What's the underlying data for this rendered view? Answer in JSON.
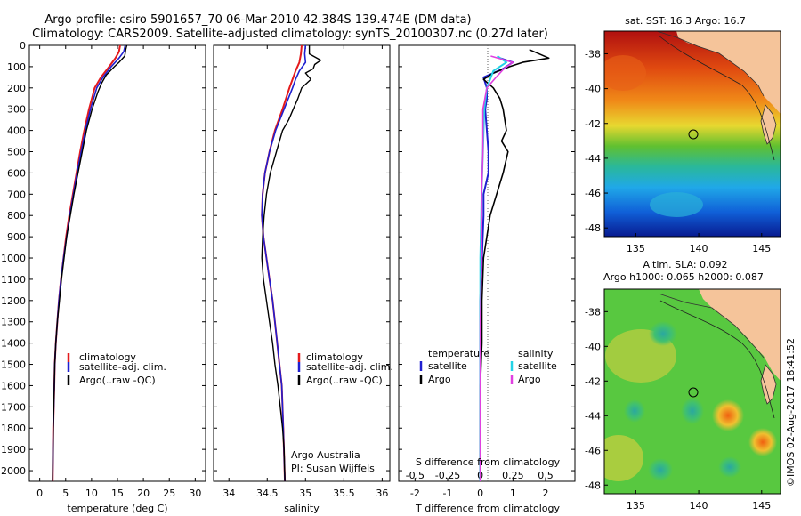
{
  "titles": {
    "line1": "Argo profile: csiro 5901657_70 06-Mar-2010 42.384S 139.474E (DM data)",
    "line2": "Climatology: CARS2009. Satellite-adjusted climatology: synTS_20100307.nc (0.27d later)"
  },
  "colors": {
    "climatology": "#e41a1c",
    "satellite": "#1f1fd0",
    "argo": "#000000",
    "salinity_satellite": "#22d3e6",
    "salinity_argo": "#e040e0",
    "land": "#f5c49a"
  },
  "depth_ticks": [
    "0",
    "100",
    "200",
    "300",
    "400",
    "500",
    "600",
    "700",
    "800",
    "900",
    "1000",
    "1100",
    "1200",
    "1300",
    "1400",
    "1500",
    "1600",
    "1700",
    "1800",
    "1900",
    "2000"
  ],
  "panels": {
    "temperature": {
      "xlabel": "temperature (deg C)",
      "xticks": [
        "0",
        "5",
        "10",
        "15",
        "20",
        "25",
        "30"
      ],
      "legend": [
        "climatology",
        "satellite-adj. clim.",
        "Argo(..raw -QC)"
      ]
    },
    "salinity": {
      "xlabel": "salinity",
      "xticks": [
        "34",
        "34.5",
        "35",
        "35.5",
        "36"
      ],
      "legend": [
        "climatology",
        "satellite-adj. clim.",
        "Argo(..raw -QC)"
      ],
      "annot1": "Argo Australia",
      "annot2": "PI: Susan Wijffels"
    },
    "difference": {
      "xlabel": "T difference from climatology",
      "top_label": "S difference from climatology",
      "xticks_T": [
        "-2",
        "-1",
        "0",
        "1",
        "2"
      ],
      "xticks_S": [
        "-0.5",
        "-0.25",
        "0",
        "0.25",
        "0.5"
      ],
      "legend_t_head": "temperature",
      "legend_s_head": "salinity",
      "legend_t": [
        "satellite",
        "Argo"
      ],
      "legend_s": [
        "satellite",
        "Argo"
      ]
    }
  },
  "maps": {
    "sst": {
      "title": "sat. SST: 16.3 Argo: 16.7",
      "yticks": [
        "-38",
        "-40",
        "-42",
        "-44",
        "-46",
        "-48"
      ],
      "xticks": [
        "135",
        "140",
        "145"
      ]
    },
    "sla": {
      "title1": "Altim. SLA: 0.092",
      "title2": "Argo h1000: 0.065 h2000: 0.087",
      "yticks": [
        "-38",
        "-40",
        "-42",
        "-44",
        "-46",
        "-48"
      ],
      "xticks": [
        "135",
        "140",
        "145"
      ]
    },
    "credit": "©IMOS 02-Aug-2017 18:41:52"
  },
  "chart_data": [
    {
      "type": "line",
      "title": "",
      "xlabel": "temperature (deg C)",
      "ylabel": "",
      "xlim": [
        -2,
        32
      ],
      "ylim": [
        2050,
        0
      ],
      "series": [
        {
          "name": "climatology",
          "x": [
            15.5,
            15.3,
            14.6,
            13.4,
            11.8,
            10.6,
            9.5,
            8.6,
            7.8,
            7.1,
            6.4,
            5.7,
            5.1,
            4.6,
            4.1,
            3.7,
            3.4,
            3.1,
            2.9,
            2.8,
            2.6,
            2.5
          ],
          "y": [
            0,
            30,
            60,
            100,
            150,
            200,
            300,
            400,
            500,
            600,
            700,
            800,
            900,
            1000,
            1100,
            1200,
            1300,
            1400,
            1500,
            1600,
            1800,
            2050
          ]
        },
        {
          "name": "satellite-adj. clim.",
          "x": [
            16.5,
            16.2,
            15.3,
            13.8,
            12.2,
            11.0,
            9.8,
            8.8,
            8.0,
            7.2,
            6.5,
            5.8,
            5.2,
            4.6,
            4.1,
            3.7,
            3.4,
            3.1,
            2.9,
            2.8,
            2.6,
            2.5
          ],
          "y": [
            0,
            30,
            60,
            100,
            150,
            200,
            300,
            400,
            500,
            600,
            700,
            800,
            900,
            1000,
            1100,
            1200,
            1300,
            1400,
            1500,
            1600,
            1800,
            2050
          ]
        },
        {
          "name": "Argo(..raw -QC)",
          "x": [
            16.8,
            16.6,
            16.4,
            15.3,
            14.4,
            12.8,
            11.9,
            11.2,
            10.1,
            9.0,
            8.2,
            7.4,
            6.6,
            5.9,
            5.2,
            4.7,
            4.2,
            3.8,
            3.4,
            3.1,
            2.9,
            2.8,
            2.6,
            2.5
          ],
          "y": [
            0,
            20,
            50,
            80,
            100,
            140,
            180,
            220,
            300,
            400,
            500,
            600,
            700,
            800,
            900,
            1000,
            1100,
            1200,
            1300,
            1400,
            1500,
            1600,
            1800,
            2050
          ]
        }
      ]
    },
    {
      "type": "line",
      "title": "",
      "xlabel": "salinity",
      "ylabel": "",
      "xlim": [
        33.8,
        36.1
      ],
      "ylim": [
        2050,
        0
      ],
      "series": [
        {
          "name": "climatology",
          "x": [
            34.95,
            34.94,
            34.92,
            34.87,
            34.83,
            34.79,
            34.7,
            34.6,
            34.53,
            34.47,
            34.44,
            34.43,
            34.45,
            34.49,
            34.53,
            34.57,
            34.6,
            34.63,
            34.66,
            34.69,
            34.71,
            34.73
          ],
          "y": [
            0,
            40,
            80,
            120,
            160,
            200,
            300,
            400,
            500,
            600,
            700,
            800,
            900,
            1000,
            1100,
            1200,
            1300,
            1400,
            1500,
            1600,
            1800,
            2050
          ]
        },
        {
          "name": "satellite-adj. clim.",
          "x": [
            35.0,
            34.99,
            35.0,
            34.92,
            34.87,
            34.83,
            34.72,
            34.61,
            34.53,
            34.47,
            34.44,
            34.43,
            34.45,
            34.49,
            34.53,
            34.57,
            34.6,
            34.63,
            34.66,
            34.69,
            34.71,
            34.73
          ],
          "y": [
            0,
            40,
            80,
            120,
            160,
            200,
            300,
            400,
            500,
            600,
            700,
            800,
            900,
            1000,
            1100,
            1200,
            1300,
            1400,
            1500,
            1600,
            1800,
            2050
          ]
        },
        {
          "name": "Argo(..raw -QC)",
          "x": [
            35.05,
            35.05,
            35.2,
            35.12,
            35.1,
            35.0,
            35.07,
            34.95,
            34.9,
            34.84,
            34.78,
            34.7,
            34.62,
            34.54,
            34.49,
            34.46,
            34.44,
            34.43,
            34.45,
            34.49,
            34.53,
            34.57,
            34.6,
            34.64,
            34.67,
            34.7,
            34.72,
            34.73
          ],
          "y": [
            0,
            40,
            70,
            90,
            110,
            130,
            160,
            200,
            250,
            300,
            350,
            400,
            500,
            600,
            700,
            800,
            900,
            1000,
            1100,
            1200,
            1300,
            1400,
            1500,
            1600,
            1700,
            1800,
            1900,
            2050
          ]
        }
      ]
    },
    {
      "type": "line",
      "title": "",
      "xlabel": "T difference from climatology",
      "ylabel": "",
      "xlim": [
        -2.5,
        2.9
      ],
      "ylim": [
        2050,
        0
      ],
      "series": [
        {
          "name": "temperature satellite",
          "x": [
            0.6,
            1.0,
            0.7,
            0.1,
            0.2,
            0.2,
            0.15,
            0.2,
            0.25,
            0.25,
            0.1,
            0.1,
            0.05,
            0.0,
            0.0,
            0.0,
            0.0,
            0.0
          ],
          "y": [
            60,
            80,
            110,
            150,
            200,
            250,
            300,
            400,
            500,
            600,
            700,
            800,
            1000,
            1200,
            1400,
            1600,
            1800,
            2050
          ]
        },
        {
          "name": "temperature Argo",
          "x": [
            1.5,
            2.1,
            1.3,
            0.9,
            0.4,
            0.1,
            0.4,
            0.6,
            0.7,
            0.8,
            0.65,
            0.85,
            0.7,
            0.5,
            0.3,
            0.2,
            0.1,
            0.05,
            0.05,
            0.0,
            0.0,
            0.0
          ],
          "y": [
            20,
            60,
            80,
            100,
            130,
            160,
            200,
            250,
            300,
            400,
            450,
            500,
            600,
            700,
            800,
            900,
            1000,
            1200,
            1400,
            1600,
            1800,
            2050
          ]
        },
        {
          "name": "salinity satellite",
          "x": [
            0.13,
            0.2,
            0.1,
            0.05,
            0.03,
            0.02,
            0.01,
            0.0,
            0.0,
            0.0,
            0.0,
            0.0
          ],
          "y": [
            50,
            80,
            120,
            200,
            300,
            500,
            700,
            1000,
            1300,
            1600,
            1900,
            2050
          ]
        },
        {
          "name": "salinity Argo",
          "x": [
            0.08,
            0.25,
            0.18,
            0.12,
            0.05,
            0.02,
            0.02,
            0.01,
            0.01,
            0.0,
            0.0,
            0.0
          ],
          "y": [
            50,
            80,
            110,
            150,
            200,
            300,
            500,
            700,
            1000,
            1300,
            1600,
            2050
          ]
        }
      ]
    },
    {
      "type": "heatmap",
      "title": "sat. SST: 16.3 Argo: 16.7",
      "xlabel": "",
      "ylabel": "",
      "xlim": [
        132.5,
        146.5
      ],
      "ylim": [
        -48.5,
        -36.7
      ],
      "marker": {
        "lon": 139.47,
        "lat": -42.38
      }
    },
    {
      "type": "heatmap",
      "title": "Altim. SLA: 0.092",
      "xlabel": "",
      "ylabel": "",
      "xlim": [
        132.5,
        146.5
      ],
      "ylim": [
        -48.5,
        -36.7
      ],
      "marker": {
        "lon": 139.47,
        "lat": -42.38
      }
    }
  ]
}
